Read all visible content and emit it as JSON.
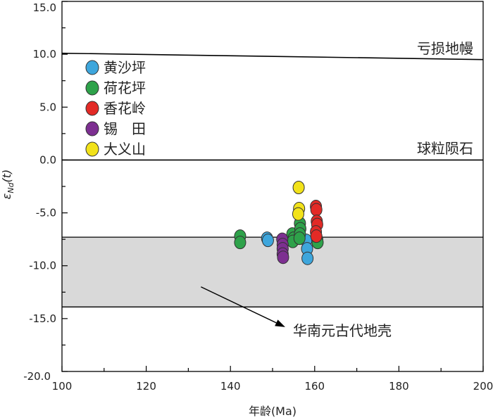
{
  "chart_data": {
    "type": "scatter",
    "title": "",
    "xlabel": "年龄(Ma)",
    "ylabel_main": "ε",
    "ylabel_sub": "Nd",
    "ylabel_suffix": "(t)",
    "xlim": [
      100,
      200
    ],
    "ylim": [
      -20,
      15
    ],
    "x_ticks": [
      100,
      120,
      140,
      160,
      180,
      200
    ],
    "x_tick_labels": [
      "100",
      "120",
      "140",
      "160",
      "180",
      "200"
    ],
    "y_ticks": [
      15,
      10,
      5,
      0,
      -5,
      -10,
      -15,
      -20
    ],
    "y_tick_labels": [
      "15.0",
      "10.0",
      "5.0",
      "0.0",
      "-5.0",
      "-10.0",
      "-15.0",
      "-20.0"
    ],
    "grid": false,
    "legend_position": "top-left",
    "reference_lines": [
      {
        "label": "亏损地幔",
        "x": [
          100,
          200
        ],
        "y": [
          10.1,
          9.5
        ]
      },
      {
        "label": "球粒陨石",
        "x": [
          100,
          200
        ],
        "y": [
          0,
          0
        ]
      }
    ],
    "band": {
      "label": "华南元古代地壳",
      "ymin": -13.9,
      "ymax": -7.3,
      "fill": "#d9d9d9"
    },
    "arrow": {
      "from": [
        133,
        -12
      ],
      "to": [
        153,
        -15.8
      ]
    },
    "series": [
      {
        "name": "黄沙坪",
        "color": "#3ea6dc",
        "points": [
          [
            148.7,
            -7.4
          ],
          [
            148.9,
            -7.6
          ],
          [
            158,
            -7.6
          ],
          [
            158.2,
            -8.4
          ],
          [
            158.3,
            -9.3
          ]
        ]
      },
      {
        "name": "荷花坪",
        "color": "#2ea24a",
        "points": [
          [
            142.3,
            -7.2
          ],
          [
            142.3,
            -7.8
          ],
          [
            154.7,
            -7.0
          ],
          [
            155,
            -7.4
          ],
          [
            154.8,
            -7.7
          ],
          [
            156.5,
            -6.0
          ],
          [
            156.6,
            -6.5
          ],
          [
            156.5,
            -7.0
          ],
          [
            156.4,
            -7.4
          ],
          [
            160.6,
            -7.5
          ],
          [
            160.7,
            -7.8
          ]
        ]
      },
      {
        "name": "香花岭",
        "color": "#e32a26",
        "points": [
          [
            160.3,
            -4.4
          ],
          [
            160.4,
            -4.7
          ],
          [
            160.5,
            -5.8
          ],
          [
            160.6,
            -6.1
          ],
          [
            160.3,
            -6.8
          ],
          [
            160.4,
            -7.2
          ]
        ]
      },
      {
        "name": "锡　田",
        "color": "#7d2f91",
        "points": [
          [
            152.3,
            -7.5
          ],
          [
            152.4,
            -8.0
          ],
          [
            152.4,
            -8.4
          ],
          [
            152.4,
            -8.9
          ],
          [
            152.5,
            -9.2
          ]
        ]
      },
      {
        "name": "大义山",
        "color": "#f2e21a",
        "points": [
          [
            156.2,
            -2.6
          ],
          [
            156.3,
            -4.6
          ],
          [
            156.1,
            -5.1
          ]
        ]
      }
    ]
  }
}
